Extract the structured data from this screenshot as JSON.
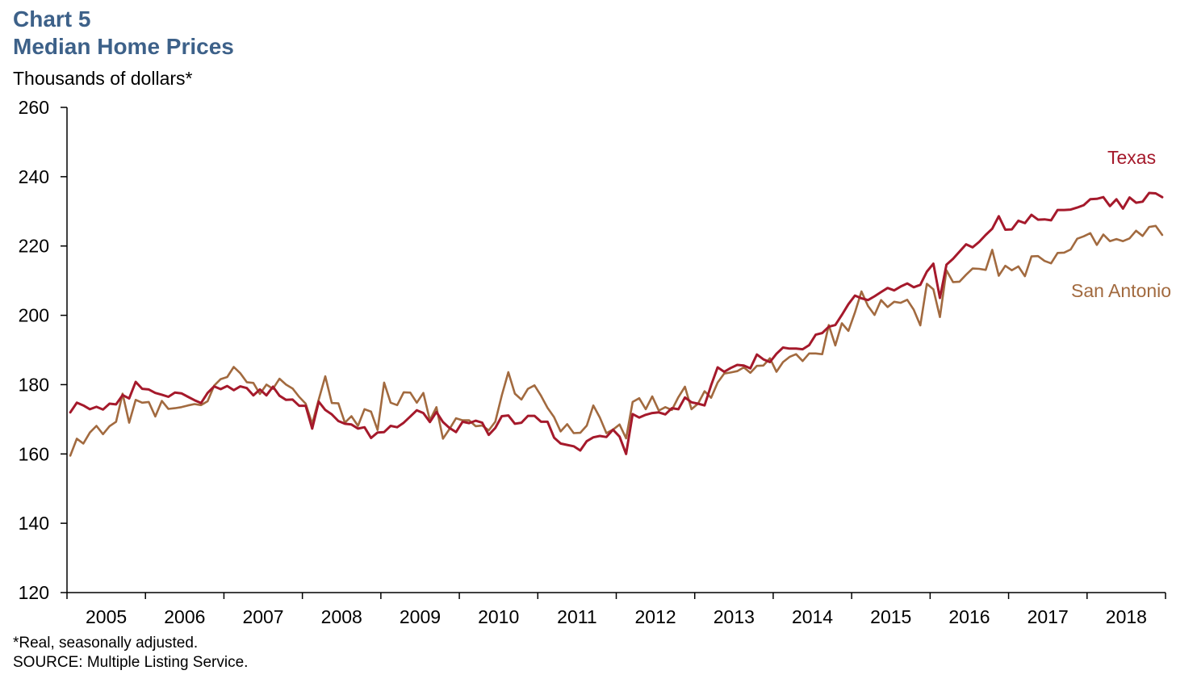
{
  "header": {
    "chart_number": "Chart 5",
    "title": "Median Home Prices",
    "subtitle": "Thousands of dollars*"
  },
  "footer": {
    "note": "*Real, seasonally adjusted.",
    "source": "SOURCE: Multiple Listing Service."
  },
  "colors": {
    "texas": "#a5192b",
    "san_antonio": "#a26a3f",
    "axis": "#000000"
  },
  "chart_data": {
    "type": "line",
    "title": "Median Home Prices",
    "xlabel": "",
    "ylabel": "Thousands of dollars*",
    "x_start": "2005-01",
    "x_end": "2018-12",
    "x_frequency": "monthly",
    "x_ticks": [
      "2005",
      "2006",
      "2007",
      "2008",
      "2009",
      "2010",
      "2011",
      "2012",
      "2013",
      "2014",
      "2015",
      "2016",
      "2017",
      "2018"
    ],
    "ylim": [
      120,
      260
    ],
    "y_ticks": [
      120,
      140,
      160,
      180,
      200,
      220,
      240,
      260
    ],
    "grid": false,
    "legend": "inline labels at right end of lines",
    "series": [
      {
        "name": "Texas",
        "values": [
          172.0,
          174.8,
          174.0,
          172.9,
          173.6,
          172.8,
          174.5,
          174.3,
          177.0,
          176.0,
          180.8,
          178.8,
          178.6,
          177.6,
          177.1,
          176.5,
          177.7,
          177.5,
          176.5,
          175.5,
          174.7,
          177.6,
          179.5,
          178.7,
          179.6,
          178.4,
          179.5,
          179.0,
          176.9,
          178.6,
          176.9,
          179.4,
          176.8,
          175.6,
          175.7,
          173.9,
          173.9,
          167.3,
          175.1,
          172.7,
          171.4,
          169.5,
          168.7,
          168.5,
          167.3,
          167.7,
          164.6,
          166.2,
          166.3,
          168.1,
          167.7,
          169.0,
          170.8,
          172.6,
          171.8,
          169.2,
          172.1,
          169.2,
          167.5,
          166.3,
          169.3,
          168.9,
          169.6,
          169.0,
          165.5,
          167.5,
          170.9,
          171.1,
          168.7,
          169.0,
          171.0,
          171.0,
          169.3,
          169.3,
          164.7,
          163.0,
          162.6,
          162.2,
          161.0,
          163.7,
          164.8,
          165.2,
          164.9,
          167.0,
          165.0,
          160.0,
          171.5,
          170.5,
          171.3,
          171.8,
          172.0,
          171.4,
          173.2,
          172.9,
          176.3,
          174.9,
          174.5,
          174.0,
          179.8,
          185.0,
          183.7,
          184.8,
          185.7,
          185.5,
          184.7,
          188.7,
          187.3,
          186.5,
          188.9,
          190.7,
          190.4,
          190.4,
          190.2,
          191.4,
          194.4,
          194.9,
          196.7,
          197.2,
          200.1,
          203.2,
          205.7,
          204.9,
          204.4,
          205.5,
          206.7,
          207.9,
          207.2,
          208.3,
          209.2,
          208.1,
          208.8,
          212.6,
          214.9,
          205.0,
          214.6,
          216.3,
          218.4,
          220.5,
          219.6,
          221.2,
          223.2,
          225.0,
          228.6,
          224.7,
          224.8,
          227.3,
          226.6,
          229.0,
          227.6,
          227.7,
          227.4,
          230.4,
          230.4,
          230.5,
          231.1,
          231.8,
          233.5,
          233.6,
          234.1,
          231.5,
          233.5,
          230.8,
          234.0,
          232.5,
          232.8,
          235.3,
          235.2,
          234.1
        ]
      },
      {
        "name": "San Antonio",
        "values": [
          159.5,
          164.4,
          163.0,
          166.2,
          168.1,
          165.7,
          168.0,
          169.3,
          177.4,
          169.0,
          175.6,
          174.8,
          175.0,
          170.8,
          175.3,
          173.0,
          173.2,
          173.5,
          174.0,
          174.4,
          174.1,
          175.2,
          179.7,
          181.6,
          182.2,
          185.1,
          183.3,
          180.7,
          180.5,
          177.3,
          180.0,
          178.8,
          181.7,
          180.0,
          178.9,
          176.5,
          174.5,
          168.7,
          175.7,
          182.4,
          174.7,
          174.6,
          169.0,
          170.9,
          168.1,
          172.9,
          172.2,
          166.9,
          180.6,
          174.8,
          174.1,
          177.8,
          177.7,
          174.8,
          177.6,
          169.7,
          173.5,
          164.4,
          167.2,
          170.3,
          169.7,
          169.7,
          168.0,
          168.2,
          166.8,
          169.3,
          176.9,
          183.6,
          177.4,
          175.7,
          178.8,
          179.8,
          176.8,
          173.3,
          170.6,
          166.5,
          168.6,
          166.0,
          166.1,
          168.2,
          174.0,
          170.5,
          166.0,
          167.0,
          168.5,
          164.5,
          175.0,
          176.1,
          172.9,
          176.6,
          172.5,
          173.5,
          172.7,
          176.4,
          179.4,
          172.9,
          174.5,
          178.1,
          176.2,
          180.6,
          183.2,
          183.5,
          183.9,
          185.0,
          183.4,
          185.4,
          185.5,
          187.6,
          183.7,
          186.5,
          188.0,
          188.8,
          186.8,
          189.0,
          189.0,
          188.8,
          197.2,
          191.3,
          197.7,
          195.5,
          200.8,
          206.9,
          202.7,
          200.1,
          204.4,
          202.4,
          203.9,
          203.6,
          204.5,
          201.6,
          197.1,
          209.1,
          207.5,
          199.5,
          213.0,
          209.6,
          209.7,
          211.7,
          213.5,
          213.4,
          213.1,
          218.9,
          211.4,
          214.3,
          213.0,
          214.1,
          211.3,
          217.0,
          217.1,
          215.7,
          215.0,
          218.0,
          218.1,
          219.0,
          222.1,
          222.8,
          223.7,
          220.3,
          223.3,
          221.4,
          222.0,
          221.4,
          222.2,
          224.4,
          222.9,
          225.5,
          225.8,
          223.2
        ]
      }
    ],
    "annotations": [
      {
        "text": "Texas",
        "series": "Texas"
      },
      {
        "text": "San Antonio",
        "series": "San Antonio"
      }
    ]
  }
}
